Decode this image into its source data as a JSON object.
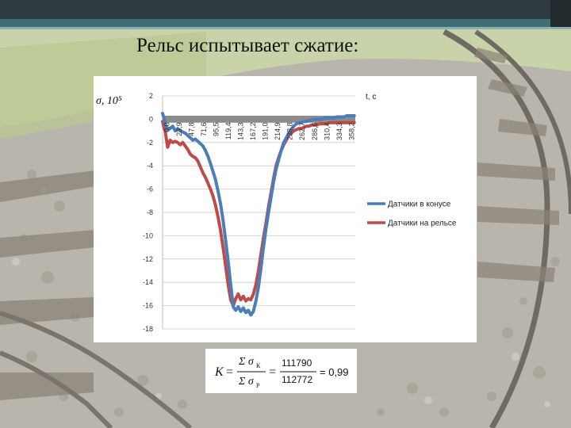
{
  "slide": {
    "title": "Рельс испытывает сжатие:"
  },
  "chart_data": {
    "type": "line",
    "y_axis_label": "σ, 10⁵",
    "x_axis_label": "t, c",
    "ylim": [
      -18,
      2
    ],
    "y_ticks": [
      2,
      0,
      -2,
      -4,
      -6,
      -8,
      -10,
      -12,
      -14,
      -16,
      -18
    ],
    "x_tick_labels": [
      "0,0",
      "23,9",
      "47,8",
      "71,6",
      "95,5",
      "119,4",
      "143,3",
      "167,2",
      "191,0",
      "214,9",
      "238,8",
      "262,7",
      "286,6",
      "310,4",
      "334,3",
      "358,2"
    ],
    "xlim": [
      0,
      382
    ],
    "grid": true,
    "legend_position": "right",
    "series": [
      {
        "name": "Датчики в конусе",
        "color": "#4a7ebb",
        "x": [
          0,
          2,
          5,
          10,
          15,
          20,
          25,
          30,
          35,
          40,
          45,
          50,
          55,
          60,
          65,
          70,
          75,
          80,
          85,
          90,
          95,
          100,
          105,
          110,
          115,
          120,
          125,
          130,
          135,
          140,
          145,
          150,
          155,
          160,
          165,
          170,
          175,
          180,
          185,
          190,
          195,
          200,
          205,
          210,
          215,
          220,
          225,
          230,
          235,
          240,
          245,
          250,
          255,
          260,
          265,
          270,
          275,
          280,
          285,
          290,
          295,
          300,
          305,
          310,
          315,
          320,
          325,
          330,
          335,
          340,
          345,
          350,
          355,
          360,
          365,
          370,
          375,
          380
        ],
        "y": [
          0.5,
          0.2,
          -0.4,
          -0.9,
          -0.8,
          -0.6,
          -1.0,
          -0.8,
          -1.0,
          -1.1,
          -1.2,
          -1.4,
          -1.6,
          -1.8,
          -1.7,
          -1.9,
          -2.1,
          -2.3,
          -2.7,
          -3.2,
          -3.8,
          -4.5,
          -5.2,
          -6.2,
          -7.3,
          -8.7,
          -10.4,
          -12.2,
          -14.2,
          -16.1,
          -16.4,
          -16.1,
          -16.5,
          -16.2,
          -16.6,
          -16.4,
          -16.8,
          -16.5,
          -15.6,
          -14.4,
          -12.8,
          -11.0,
          -9.4,
          -8.0,
          -6.7,
          -5.4,
          -4.3,
          -3.5,
          -2.7,
          -2.0,
          -1.6,
          -1.2,
          -0.9,
          -0.6,
          -0.4,
          -0.3,
          -0.3,
          -0.2,
          -0.2,
          -0.1,
          -0.1,
          0.0,
          0.0,
          0.0,
          0.0,
          0.1,
          0.1,
          0.1,
          0.1,
          0.1,
          0.2,
          0.2,
          0.2,
          0.2,
          0.3,
          0.3,
          0.3,
          0.3
        ]
      },
      {
        "name": "Датчики на рельсе",
        "color": "#be4b48",
        "x": [
          0,
          2,
          5,
          10,
          15,
          20,
          25,
          30,
          35,
          40,
          45,
          50,
          55,
          60,
          65,
          70,
          75,
          80,
          85,
          90,
          95,
          100,
          105,
          110,
          115,
          120,
          125,
          130,
          135,
          140,
          145,
          150,
          155,
          160,
          165,
          170,
          175,
          180,
          185,
          190,
          195,
          200,
          205,
          210,
          215,
          220,
          225,
          230,
          235,
          240,
          245,
          250,
          255,
          260,
          265,
          270,
          275,
          280,
          285,
          290,
          295,
          300,
          305,
          310,
          315,
          320,
          325,
          330,
          335,
          340,
          345,
          350,
          355,
          360,
          365,
          370,
          375,
          380
        ],
        "y": [
          -0.2,
          -0.6,
          -1.0,
          -2.4,
          -1.8,
          -2.0,
          -1.9,
          -2.0,
          -2.2,
          -2.0,
          -2.3,
          -2.6,
          -3.0,
          -3.2,
          -3.3,
          -3.6,
          -4.1,
          -4.6,
          -5.0,
          -5.5,
          -6.0,
          -6.6,
          -7.4,
          -8.4,
          -9.6,
          -11.0,
          -12.6,
          -14.2,
          -15.5,
          -16.0,
          -15.4,
          -15.0,
          -15.5,
          -15.2,
          -15.6,
          -15.4,
          -15.5,
          -15.0,
          -14.2,
          -13.0,
          -11.6,
          -10.2,
          -8.9,
          -7.5,
          -6.3,
          -5.1,
          -4.0,
          -3.3,
          -2.7,
          -2.2,
          -1.8,
          -1.4,
          -1.2,
          -1.0,
          -0.9,
          -0.8,
          -0.8,
          -0.7,
          -0.6,
          -0.6,
          -0.5,
          -0.5,
          -0.5,
          -0.4,
          -0.4,
          -0.4,
          -0.4,
          -0.3,
          -0.3,
          -0.3,
          -0.3,
          -0.3,
          -0.3,
          -0.3,
          -0.3,
          -0.3,
          -0.3,
          -0.3
        ]
      }
    ]
  },
  "formula": {
    "k": "K",
    "eq": "=",
    "sum_num": "Σ σ",
    "sub_num": "К",
    "sum_den": "Σ σ",
    "sub_den": "Р",
    "value_num": "111790",
    "value_den": "112772",
    "result": "= 0,99"
  }
}
